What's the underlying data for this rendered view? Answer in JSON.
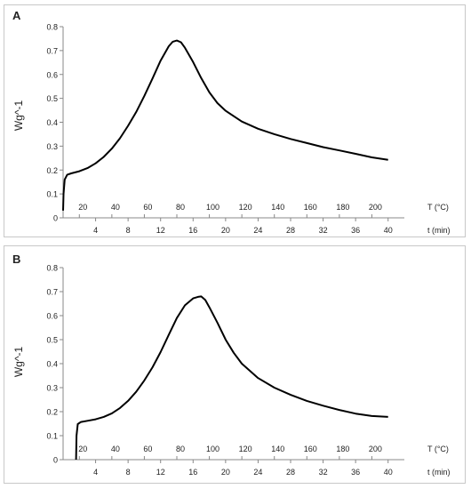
{
  "chart_data": [
    {
      "panel_label": "A",
      "type": "line",
      "ylabel": "Wg^-1",
      "ylim": [
        0,
        0.8
      ],
      "yticks": [
        "0",
        "0.1",
        "0.2",
        "0.3",
        "0.4",
        "0.5",
        "0.6",
        "0.7",
        "0.8"
      ],
      "x_time_label": "t (min)",
      "x_temp_label": "T (°C)",
      "xlim_time": [
        0,
        42
      ],
      "time_ticks": [
        "4",
        "8",
        "12",
        "16",
        "20",
        "24",
        "28",
        "32",
        "36",
        "40"
      ],
      "temp_ticks": [
        "20",
        "40",
        "60",
        "80",
        "100",
        "120",
        "140",
        "160",
        "180",
        "200"
      ],
      "grid": false,
      "line_color": "#000000",
      "x": [
        0,
        0.05,
        0.2,
        0.5,
        1,
        2,
        3,
        4,
        5,
        6,
        7,
        8,
        9,
        10,
        11,
        12,
        13,
        13.5,
        14,
        14.5,
        15,
        16,
        17,
        18,
        19,
        20,
        22,
        24,
        26,
        28,
        30,
        32,
        34,
        36,
        38,
        40
      ],
      "y": [
        0.03,
        0.1,
        0.16,
        0.18,
        0.186,
        0.195,
        0.208,
        0.228,
        0.255,
        0.29,
        0.333,
        0.385,
        0.443,
        0.51,
        0.583,
        0.658,
        0.718,
        0.737,
        0.742,
        0.735,
        0.712,
        0.652,
        0.585,
        0.525,
        0.48,
        0.448,
        0.403,
        0.373,
        0.35,
        0.33,
        0.313,
        0.296,
        0.282,
        0.268,
        0.253,
        0.243
      ]
    },
    {
      "panel_label": "B",
      "type": "line",
      "ylabel": "Wg^-1",
      "ylim": [
        0,
        0.8
      ],
      "yticks": [
        "0",
        "0.1",
        "0.2",
        "0.3",
        "0.4",
        "0.5",
        "0.6",
        "0.7",
        "0.8"
      ],
      "x_time_label": "t (min)",
      "x_temp_label": "T (°C)",
      "xlim_time": [
        0,
        42
      ],
      "time_ticks": [
        "4",
        "8",
        "12",
        "16",
        "20",
        "24",
        "28",
        "32",
        "36",
        "40"
      ],
      "temp_ticks": [
        "20",
        "40",
        "60",
        "80",
        "100",
        "120",
        "140",
        "160",
        "180",
        "200"
      ],
      "grid": false,
      "line_color": "#000000",
      "x": [
        1.6,
        1.65,
        1.8,
        2.2,
        3,
        4,
        5,
        6,
        7,
        8,
        9,
        10,
        11,
        12,
        13,
        14,
        15,
        16,
        16.6,
        17,
        17.5,
        18,
        19,
        20,
        21,
        22,
        24,
        26,
        28,
        30,
        32,
        34,
        36,
        38,
        40
      ],
      "y": [
        0,
        0.1,
        0.148,
        0.157,
        0.162,
        0.168,
        0.178,
        0.193,
        0.215,
        0.245,
        0.283,
        0.33,
        0.385,
        0.448,
        0.52,
        0.59,
        0.643,
        0.672,
        0.678,
        0.68,
        0.665,
        0.635,
        0.57,
        0.5,
        0.445,
        0.4,
        0.34,
        0.3,
        0.27,
        0.245,
        0.225,
        0.207,
        0.192,
        0.182,
        0.178
      ]
    }
  ]
}
